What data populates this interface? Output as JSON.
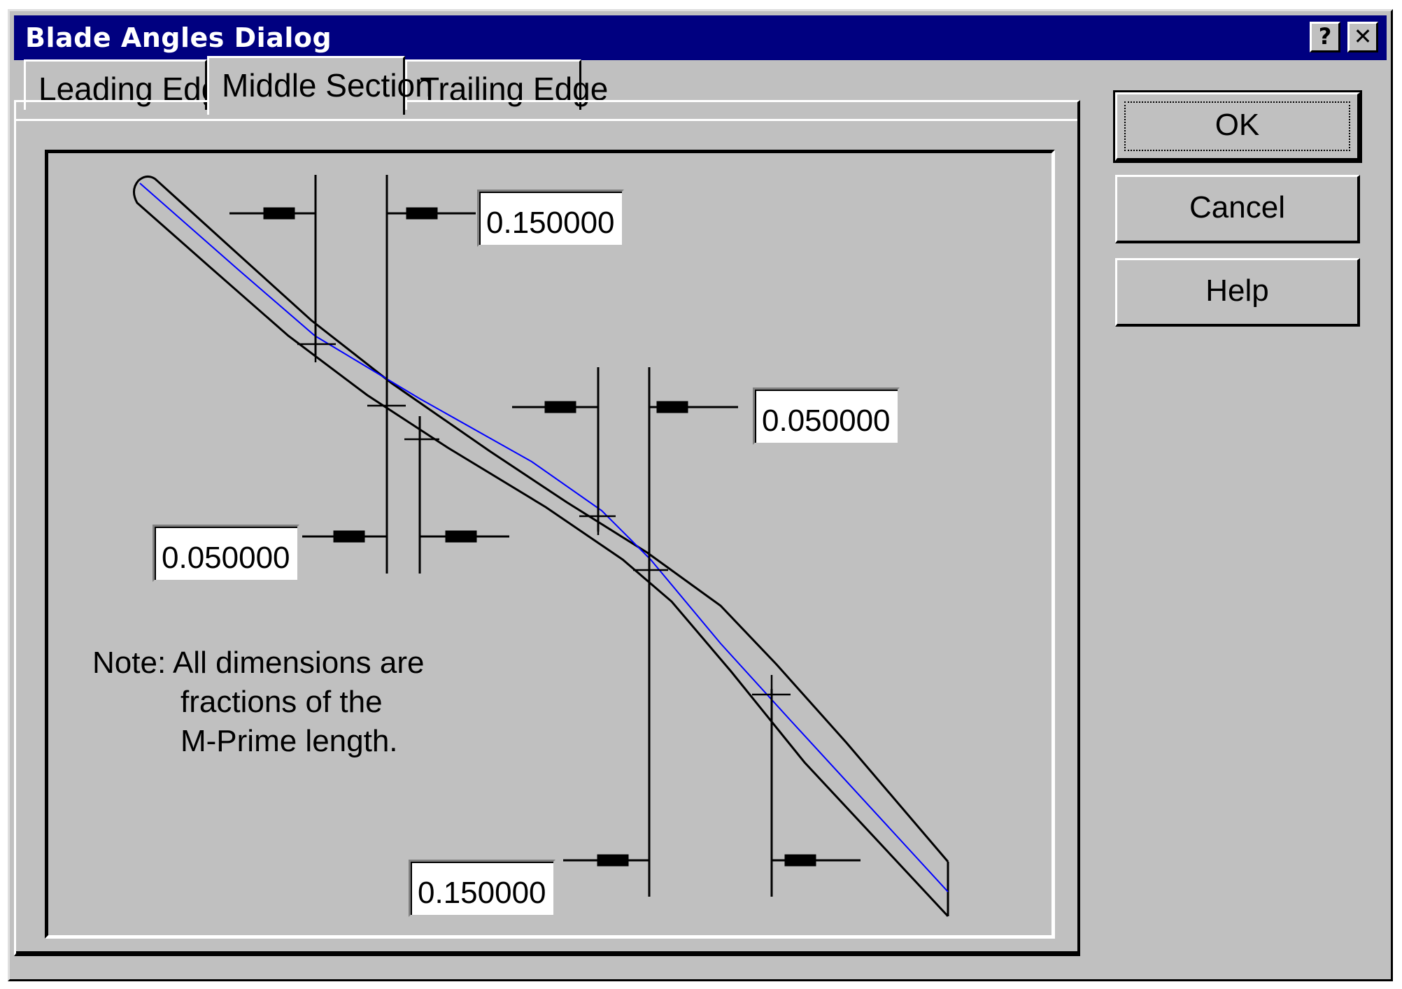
{
  "window": {
    "title": "Blade Angles Dialog",
    "help_glyph": "?",
    "close_glyph": "✕"
  },
  "tabs": [
    {
      "label": "Leading Edge",
      "active": false
    },
    {
      "label": "Middle Section",
      "active": true
    },
    {
      "label": "Trailing Edge",
      "active": false
    }
  ],
  "fields": {
    "top_right": "0.150000",
    "middle_right": "0.050000",
    "middle_left": "0.050000",
    "bottom": "0.150000"
  },
  "note": {
    "line1": "Note: All dimensions are",
    "line2": "fractions of the",
    "line3": "M-Prime length."
  },
  "buttons": {
    "ok": "OK",
    "cancel": "Cancel",
    "help": "Help"
  },
  "colors": {
    "dialog_face": "#c0c0c0",
    "titlebar": "#000080",
    "camber_line": "#0000ff"
  }
}
